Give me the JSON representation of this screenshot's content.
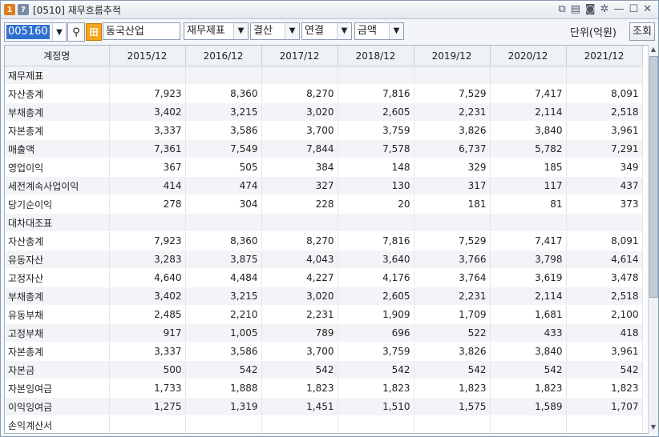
{
  "window": {
    "badge1": "1",
    "badge2": "?",
    "title": "[0510] 재무흐름추적"
  },
  "toolbar": {
    "code_value": "005160",
    "stock_name": "동국산업",
    "stock_badge": "田",
    "report_type": "재무제표",
    "period_type": "결산",
    "consolidation": "연결",
    "value_type": "금액",
    "unit_label": "단위(억원)",
    "lookup_button": "조회"
  },
  "table": {
    "headers": [
      "계정명",
      "2015/12",
      "2016/12",
      "2017/12",
      "2018/12",
      "2019/12",
      "2020/12",
      "2021/12"
    ],
    "rows": [
      {
        "name": "재무제표",
        "values": [
          "",
          "",
          "",
          "",
          "",
          "",
          ""
        ]
      },
      {
        "name": "자산총계",
        "values": [
          "7,923",
          "8,360",
          "8,270",
          "7,816",
          "7,529",
          "7,417",
          "8,091"
        ]
      },
      {
        "name": "부채총계",
        "values": [
          "3,402",
          "3,215",
          "3,020",
          "2,605",
          "2,231",
          "2,114",
          "2,518"
        ]
      },
      {
        "name": "자본총계",
        "values": [
          "3,337",
          "3,586",
          "3,700",
          "3,759",
          "3,826",
          "3,840",
          "3,961"
        ]
      },
      {
        "name": "매출액",
        "values": [
          "7,361",
          "7,549",
          "7,844",
          "7,578",
          "6,737",
          "5,782",
          "7,291"
        ]
      },
      {
        "name": "영업이익",
        "values": [
          "367",
          "505",
          "384",
          "148",
          "329",
          "185",
          "349"
        ]
      },
      {
        "name": "세전계속사업이익",
        "values": [
          "414",
          "474",
          "327",
          "130",
          "317",
          "117",
          "437"
        ]
      },
      {
        "name": "당기순이익",
        "values": [
          "278",
          "304",
          "228",
          "20",
          "181",
          "81",
          "373"
        ]
      },
      {
        "name": "대차대조표",
        "values": [
          "",
          "",
          "",
          "",
          "",
          "",
          ""
        ]
      },
      {
        "name": "자산총계",
        "values": [
          "7,923",
          "8,360",
          "8,270",
          "7,816",
          "7,529",
          "7,417",
          "8,091"
        ]
      },
      {
        "name": "유동자산",
        "values": [
          "3,283",
          "3,875",
          "4,043",
          "3,640",
          "3,766",
          "3,798",
          "4,614"
        ]
      },
      {
        "name": "고정자산",
        "values": [
          "4,640",
          "4,484",
          "4,227",
          "4,176",
          "3,764",
          "3,619",
          "3,478"
        ]
      },
      {
        "name": "부채총계",
        "values": [
          "3,402",
          "3,215",
          "3,020",
          "2,605",
          "2,231",
          "2,114",
          "2,518"
        ]
      },
      {
        "name": "유동부채",
        "values": [
          "2,485",
          "2,210",
          "2,231",
          "1,909",
          "1,709",
          "1,681",
          "2,100"
        ]
      },
      {
        "name": "고정부채",
        "values": [
          "917",
          "1,005",
          "789",
          "696",
          "522",
          "433",
          "418"
        ]
      },
      {
        "name": "자본총계",
        "values": [
          "3,337",
          "3,586",
          "3,700",
          "3,759",
          "3,826",
          "3,840",
          "3,961"
        ]
      },
      {
        "name": "자본금",
        "values": [
          "500",
          "542",
          "542",
          "542",
          "542",
          "542",
          "542"
        ]
      },
      {
        "name": "자본잉여금",
        "values": [
          "1,733",
          "1,888",
          "1,823",
          "1,823",
          "1,823",
          "1,823",
          "1,823"
        ]
      },
      {
        "name": "이익잉여금",
        "values": [
          "1,275",
          "1,319",
          "1,451",
          "1,510",
          "1,575",
          "1,589",
          "1,707"
        ]
      },
      {
        "name": "손익계산서",
        "values": [
          "",
          "",
          "",
          "",
          "",
          "",
          ""
        ]
      }
    ]
  }
}
